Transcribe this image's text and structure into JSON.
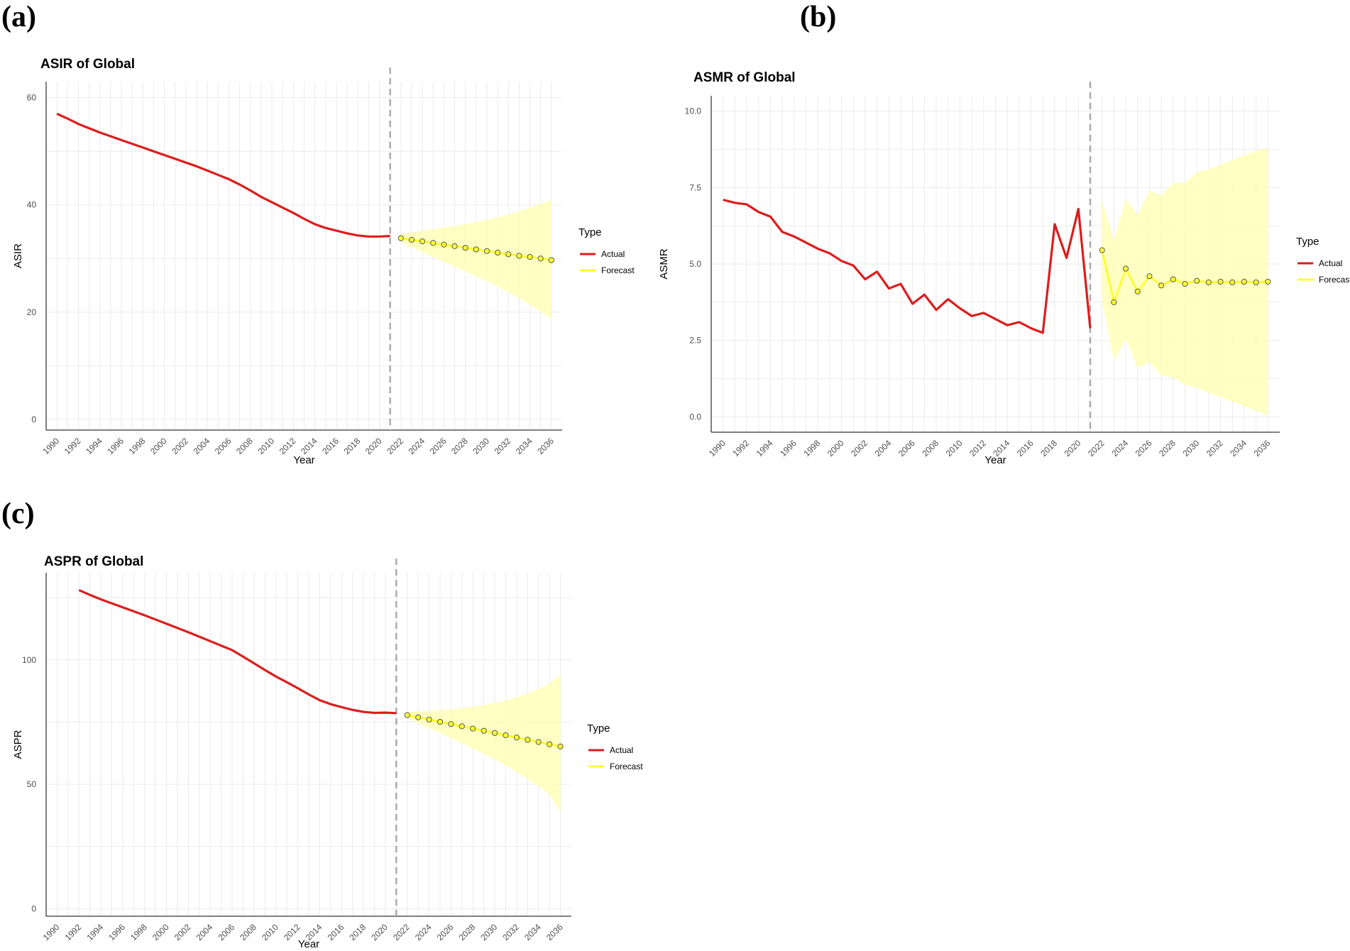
{
  "panel_labels": [
    "(a)",
    "(b)",
    "(c)"
  ],
  "colors": {
    "actual": "#dd1c1c",
    "forecast": "#ffff33",
    "band": "#ffffb0",
    "point_edge": "#555555",
    "vline": "#aaaaaa",
    "grid": "#ebebeb"
  },
  "chart_data": [
    {
      "type": "line",
      "title": "ASIR of Global",
      "xlabel": "Year",
      "ylabel": "ASIR",
      "xlim": [
        1989,
        2037
      ],
      "ylim": [
        -2,
        63
      ],
      "x_ticks": [
        1990,
        1992,
        1994,
        1996,
        1998,
        2000,
        2002,
        2004,
        2006,
        2008,
        2010,
        2012,
        2014,
        2016,
        2018,
        2020,
        2022,
        2024,
        2026,
        2028,
        2030,
        2032,
        2034,
        2036
      ],
      "y_ticks": [
        0,
        20,
        40,
        60
      ],
      "y_tick_labels": [
        "0",
        "20",
        "40",
        "60"
      ],
      "divider_x": 2021,
      "legend": {
        "title": "Type",
        "position": "right",
        "entries": [
          "Actual",
          "Forecast"
        ]
      },
      "series": [
        {
          "name": "Actual",
          "x": [
            1990,
            1991,
            1992,
            1993,
            1994,
            1995,
            1996,
            1997,
            1998,
            1999,
            2000,
            2001,
            2002,
            2003,
            2004,
            2005,
            2006,
            2007,
            2008,
            2009,
            2010,
            2011,
            2012,
            2013,
            2014,
            2015,
            2016,
            2017,
            2018,
            2019,
            2020,
            2021
          ],
          "y": [
            57.0,
            56.1,
            55.1,
            54.3,
            53.5,
            52.8,
            52.1,
            51.4,
            50.7,
            50.0,
            49.3,
            48.6,
            47.9,
            47.2,
            46.4,
            45.6,
            44.8,
            43.8,
            42.7,
            41.5,
            40.5,
            39.5,
            38.5,
            37.4,
            36.4,
            35.7,
            35.2,
            34.7,
            34.3,
            34.1,
            34.1,
            34.2
          ]
        },
        {
          "name": "Forecast",
          "x": [
            2022,
            2023,
            2024,
            2025,
            2026,
            2027,
            2028,
            2029,
            2030,
            2031,
            2032,
            2033,
            2034,
            2035,
            2036
          ],
          "y": [
            33.8,
            33.5,
            33.2,
            32.9,
            32.6,
            32.3,
            32.0,
            31.7,
            31.4,
            31.1,
            30.8,
            30.5,
            30.3,
            30.0,
            29.7
          ],
          "lower": [
            33.0,
            32.1,
            31.2,
            30.3,
            29.4,
            28.5,
            27.6,
            26.7,
            25.8,
            24.8,
            23.7,
            22.6,
            21.4,
            20.1,
            18.7
          ],
          "upper": [
            34.6,
            34.9,
            35.2,
            35.5,
            35.8,
            36.1,
            36.4,
            36.8,
            37.2,
            37.7,
            38.2,
            38.8,
            39.5,
            40.2,
            41.0
          ]
        }
      ]
    },
    {
      "type": "line",
      "title": "ASMR of Global",
      "xlabel": "Year",
      "ylabel": "ASMR",
      "xlim": [
        1989,
        2037
      ],
      "ylim": [
        -0.5,
        10.5
      ],
      "x_ticks": [
        1990,
        1992,
        1994,
        1996,
        1998,
        2000,
        2002,
        2004,
        2006,
        2008,
        2010,
        2012,
        2014,
        2016,
        2018,
        2020,
        2022,
        2024,
        2026,
        2028,
        2030,
        2032,
        2034,
        2036
      ],
      "y_ticks": [
        0,
        2.5,
        5,
        7.5,
        10
      ],
      "y_tick_labels": [
        "0.0",
        "2.5",
        "5.0",
        "7.5",
        "10.0"
      ],
      "divider_x": 2021,
      "legend": {
        "title": "Type",
        "position": "right",
        "entries": [
          "Actual",
          "Forecast"
        ]
      },
      "series": [
        {
          "name": "Actual",
          "x": [
            1990,
            1991,
            1992,
            1993,
            1994,
            1995,
            1996,
            1997,
            1998,
            1999,
            2000,
            2001,
            2002,
            2003,
            2004,
            2005,
            2006,
            2007,
            2008,
            2009,
            2010,
            2011,
            2012,
            2013,
            2014,
            2015,
            2016,
            2017,
            2018,
            2019,
            2020,
            2021
          ],
          "y": [
            7.1,
            7.0,
            6.95,
            6.7,
            6.55,
            6.05,
            5.9,
            5.7,
            5.5,
            5.35,
            5.1,
            4.95,
            4.5,
            4.75,
            4.2,
            4.35,
            3.7,
            4.0,
            3.5,
            3.85,
            3.55,
            3.3,
            3.4,
            3.2,
            3.0,
            3.1,
            2.9,
            2.75,
            6.3,
            5.2,
            6.8,
            2.9
          ]
        },
        {
          "name": "Forecast",
          "x": [
            2022,
            2023,
            2024,
            2025,
            2026,
            2027,
            2028,
            2029,
            2030,
            2031,
            2032,
            2033,
            2034,
            2035,
            2036
          ],
          "y": [
            5.45,
            3.75,
            4.85,
            4.1,
            4.6,
            4.3,
            4.5,
            4.35,
            4.45,
            4.4,
            4.42,
            4.4,
            4.42,
            4.4,
            4.42
          ],
          "lower": [
            3.8,
            1.85,
            2.55,
            1.6,
            1.8,
            1.35,
            1.3,
            1.05,
            0.95,
            0.8,
            0.65,
            0.5,
            0.35,
            0.2,
            0.05
          ],
          "upper": [
            7.1,
            5.75,
            7.15,
            6.6,
            7.4,
            7.25,
            7.65,
            7.65,
            8.0,
            8.1,
            8.25,
            8.4,
            8.55,
            8.7,
            8.8
          ]
        }
      ]
    },
    {
      "type": "line",
      "title": "ASPR of Global",
      "xlabel": "Year",
      "ylabel": "ASPR",
      "xlim": [
        1989,
        2037
      ],
      "ylim": [
        -3,
        135
      ],
      "x_ticks": [
        1990,
        1992,
        1994,
        1996,
        1998,
        2000,
        2002,
        2004,
        2006,
        2008,
        2010,
        2012,
        2014,
        2016,
        2018,
        2020,
        2022,
        2024,
        2026,
        2028,
        2030,
        2032,
        2034,
        2036
      ],
      "y_ticks": [
        0,
        50,
        100
      ],
      "y_tick_labels": [
        "0",
        "50",
        "100"
      ],
      "divider_x": 2021,
      "legend": {
        "title": "Type",
        "position": "right",
        "entries": [
          "Actual",
          "Forecast"
        ]
      },
      "series": [
        {
          "name": "Actual",
          "x": [
            1992,
            1993,
            1994,
            1995,
            1996,
            1997,
            1998,
            1999,
            2000,
            2001,
            2002,
            2003,
            2004,
            2005,
            2006,
            2007,
            2008,
            2009,
            2010,
            2011,
            2012,
            2013,
            2014,
            2015,
            2016,
            2017,
            2018,
            2019,
            2020,
            2021
          ],
          "y": [
            128.0,
            126.1,
            124.3,
            122.7,
            121.1,
            119.5,
            117.9,
            116.2,
            114.5,
            112.8,
            111.1,
            109.3,
            107.5,
            105.7,
            103.9,
            101.3,
            98.6,
            95.9,
            93.3,
            91.0,
            88.6,
            86.1,
            83.8,
            82.2,
            81.0,
            79.9,
            79.1,
            78.7,
            78.8,
            78.6
          ]
        },
        {
          "name": "Forecast",
          "x": [
            2022,
            2023,
            2024,
            2025,
            2026,
            2027,
            2028,
            2029,
            2030,
            2031,
            2032,
            2033,
            2034,
            2035,
            2036
          ],
          "y": [
            77.8,
            76.9,
            76.0,
            75.1,
            74.2,
            73.3,
            72.4,
            71.5,
            70.6,
            69.7,
            68.8,
            67.9,
            67.0,
            66.1,
            65.2
          ],
          "lower": [
            76.6,
            74.6,
            72.6,
            70.6,
            68.6,
            66.5,
            64.4,
            62.2,
            60.0,
            57.6,
            55.0,
            52.2,
            49.2,
            46.0,
            38.8
          ],
          "upper": [
            79.0,
            79.2,
            79.5,
            79.8,
            80.2,
            80.6,
            81.2,
            81.9,
            82.8,
            83.8,
            85.0,
            86.5,
            88.3,
            90.5,
            94.2
          ]
        }
      ]
    }
  ]
}
